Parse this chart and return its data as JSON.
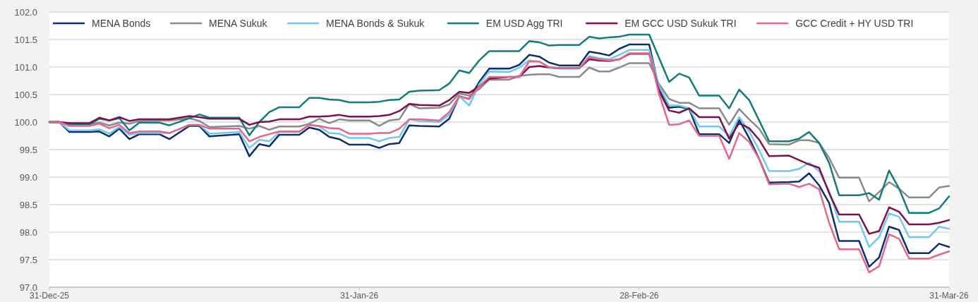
{
  "chart_data": {
    "type": "line",
    "x": [
      "2025-12-31",
      "2026-01-01",
      "2026-01-02",
      "2026-01-04",
      "2026-01-05",
      "2026-01-06",
      "2026-01-07",
      "2026-01-08",
      "2026-01-09",
      "2026-01-11",
      "2026-01-12",
      "2026-01-14",
      "2026-01-15",
      "2026-01-16",
      "2026-01-19",
      "2026-01-20",
      "2026-01-21",
      "2026-01-22",
      "2026-01-23",
      "2026-01-25",
      "2026-01-26",
      "2026-01-27",
      "2026-01-28",
      "2026-01-29",
      "2026-01-30",
      "2026-02-01",
      "2026-02-02",
      "2026-02-03",
      "2026-02-04",
      "2026-02-05",
      "2026-02-06",
      "2026-02-08",
      "2026-02-09",
      "2026-02-10",
      "2026-02-11",
      "2026-02-12",
      "2026-02-13",
      "2026-02-15",
      "2026-02-16",
      "2026-02-17",
      "2026-02-18",
      "2026-02-19",
      "2026-02-20",
      "2026-02-22",
      "2026-02-23",
      "2026-02-24",
      "2026-02-25",
      "2026-02-26",
      "2026-02-27",
      "2026-03-01",
      "2026-03-02",
      "2026-03-03",
      "2026-03-04",
      "2026-03-05",
      "2026-03-06",
      "2026-03-08",
      "2026-03-09",
      "2026-03-10",
      "2026-03-11",
      "2026-03-12",
      "2026-03-13",
      "2026-03-15",
      "2026-03-16",
      "2026-03-17",
      "2026-03-18",
      "2026-03-19",
      "2026-03-20",
      "2026-03-22",
      "2026-03-23",
      "2026-03-24",
      "2026-03-25",
      "2026-03-26",
      "2026-03-27",
      "2026-03-29",
      "2026-03-30",
      "2026-03-31"
    ],
    "series": [
      {
        "name": "MENA Bonds",
        "color": "#0b2f6b",
        "values": [
          100,
          100,
          99.82,
          99.82,
          99.83,
          99.74,
          99.88,
          99.69,
          99.78,
          99.78,
          99.69,
          99.93,
          99.93,
          99.74,
          99.78,
          99.38,
          99.6,
          99.56,
          99.77,
          99.77,
          99.9,
          99.86,
          99.73,
          99.69,
          99.59,
          99.59,
          99.53,
          99.6,
          99.62,
          99.94,
          99.93,
          99.92,
          100.06,
          100.47,
          100.42,
          100.73,
          100.97,
          100.97,
          101.04,
          101.22,
          101.19,
          101.08,
          101.03,
          101.03,
          101.28,
          101.25,
          101.21,
          101.33,
          101.41,
          101.41,
          100.6,
          100.26,
          100.28,
          100.24,
          99.78,
          99.78,
          99.62,
          100.04,
          99.71,
          99.33,
          98.9,
          98.91,
          98.92,
          99.07,
          98.85,
          98.53,
          97.84,
          97.84,
          97.37,
          97.54,
          98.1,
          98.04,
          97.62,
          97.62,
          97.79,
          97.73
        ]
      },
      {
        "name": "MENA Sukuk",
        "color": "#8a8a8a",
        "values": [
          100,
          100,
          99.96,
          99.96,
          99.99,
          99.94,
          99.99,
          99.97,
          100.02,
          100.03,
          100.03,
          100.07,
          100.02,
          99.91,
          99.93,
          99.88,
          99.93,
          99.86,
          99.92,
          99.92,
          99.97,
          100.06,
          99.98,
          100.05,
          100.03,
          100.03,
          99.93,
          100.03,
          100.05,
          100.33,
          100.25,
          100.26,
          100.32,
          100.52,
          100.48,
          100.6,
          100.77,
          100.77,
          100.84,
          100.86,
          100.87,
          100.87,
          100.82,
          100.82,
          100.99,
          100.92,
          100.92,
          100.99,
          101.07,
          101.07,
          100.69,
          100.42,
          100.35,
          100.35,
          100.25,
          100.25,
          99.95,
          100.24,
          100.05,
          99.88,
          99.6,
          99.59,
          99.67,
          99.67,
          99.62,
          99.35,
          98.99,
          98.99,
          98.56,
          98.73,
          98.91,
          98.79,
          98.63,
          98.63,
          98.81,
          98.84
        ]
      },
      {
        "name": "MENA Bonds & Sukuk",
        "color": "#72c7ec",
        "values": [
          100,
          100,
          99.85,
          99.85,
          99.87,
          99.79,
          99.91,
          99.77,
          99.8,
          99.8,
          99.8,
          99.95,
          99.95,
          99.79,
          99.82,
          99.53,
          99.68,
          99.65,
          99.82,
          99.82,
          99.95,
          99.92,
          99.8,
          99.79,
          99.71,
          99.71,
          99.65,
          99.71,
          99.73,
          100.05,
          100.02,
          100,
          100.13,
          100.47,
          100.3,
          100.69,
          100.92,
          100.91,
          100.99,
          101.12,
          101.1,
          101,
          100.97,
          100.97,
          101.2,
          101.16,
          101.14,
          101.22,
          101.31,
          101.31,
          100.65,
          100.3,
          100.3,
          100.25,
          99.92,
          99.92,
          99.75,
          100.09,
          99.83,
          99.49,
          99.11,
          99.11,
          99.15,
          99.26,
          99.11,
          98.75,
          98.19,
          98.19,
          97.73,
          97.91,
          98.34,
          98.28,
          97.91,
          97.91,
          98.1,
          98.06
        ]
      },
      {
        "name": "EM USD Agg TRI",
        "color": "#137b7c",
        "values": [
          100,
          100,
          99.96,
          99.96,
          100.06,
          100.03,
          100.07,
          99.85,
          99.99,
          99.99,
          99.94,
          100.07,
          100.14,
          100.08,
          100.08,
          99.76,
          100,
          100.18,
          100.27,
          100.27,
          100.44,
          100.44,
          100.41,
          100.4,
          100.36,
          100.36,
          100.37,
          100.4,
          100.41,
          100.55,
          100.57,
          100.58,
          100.7,
          100.94,
          100.89,
          101.12,
          101.29,
          101.29,
          101.29,
          101.47,
          101.45,
          101.39,
          101.4,
          101.4,
          101.55,
          101.52,
          101.54,
          101.55,
          101.59,
          101.59,
          101.16,
          100.73,
          100.88,
          100.81,
          100.48,
          100.48,
          100.25,
          100.59,
          100.4,
          100.03,
          99.65,
          99.65,
          99.7,
          99.82,
          99.62,
          99.26,
          98.67,
          98.67,
          98.71,
          98.59,
          99.12,
          98.79,
          98.35,
          98.35,
          98.43,
          98.65
        ]
      },
      {
        "name": "EM GCC USD Sukuk TRI",
        "color": "#7b1150",
        "values": [
          100,
          100,
          99.98,
          99.98,
          100.08,
          100.03,
          100.09,
          100.02,
          100.05,
          100.05,
          100.05,
          100.11,
          100.09,
          100.06,
          100.06,
          99.95,
          100,
          100.01,
          100.05,
          100.05,
          100.1,
          100.1,
          100.11,
          100.13,
          100.1,
          100.1,
          100.11,
          100.13,
          100.2,
          100.33,
          100.31,
          100.3,
          100.4,
          100.55,
          100.53,
          100.65,
          100.79,
          100.82,
          100.82,
          101,
          101.02,
          100.99,
          100.98,
          100.98,
          101.14,
          101.12,
          101.11,
          101.14,
          101.24,
          101.24,
          100.56,
          100.21,
          100.17,
          100.25,
          100.09,
          100.09,
          99.7,
          99.98,
          99.89,
          99.68,
          99.38,
          99.39,
          99.31,
          99.23,
          99.17,
          98.71,
          98.32,
          98.32,
          97.97,
          98.02,
          98.45,
          98.37,
          98.14,
          98.14,
          98.17,
          98.22
        ]
      },
      {
        "name": "GCC Credit + HY USD TRI",
        "color": "#e2678b",
        "values": [
          100,
          100,
          99.93,
          99.93,
          99.97,
          99.89,
          99.95,
          99.8,
          99.83,
          99.83,
          99.8,
          99.95,
          99.95,
          99.88,
          99.88,
          99.65,
          99.73,
          99.78,
          99.83,
          99.83,
          99.95,
          99.93,
          99.89,
          99.88,
          99.79,
          99.79,
          99.8,
          99.8,
          99.88,
          100.05,
          100.05,
          100.03,
          100.18,
          100.47,
          100.42,
          100.65,
          100.82,
          100.82,
          100.82,
          101.1,
          101.1,
          100.99,
          100.98,
          100.98,
          101.18,
          101.14,
          101.12,
          101.14,
          101.25,
          101.25,
          100.5,
          99.95,
          99.96,
          100.03,
          99.75,
          99.75,
          99.33,
          99.8,
          99.64,
          99.33,
          98.87,
          98.88,
          98.82,
          98.88,
          98.78,
          98.17,
          97.69,
          97.69,
          97.27,
          97.38,
          97.96,
          97.88,
          97.52,
          97.52,
          97.59,
          97.65
        ]
      }
    ],
    "xlim": [
      "2025-12-31",
      "2026-03-31"
    ],
    "xticks": [
      {
        "value": "2025-12-31",
        "label": "31-Dec-25"
      },
      {
        "value": "2026-01-31",
        "label": "31-Jan-26"
      },
      {
        "value": "2026-02-28",
        "label": "28-Feb-26"
      },
      {
        "value": "2026-03-31",
        "label": "31-Mar-26"
      }
    ],
    "ylim": [
      97,
      102
    ],
    "yticks": [
      {
        "value": 97,
        "label": "97.0"
      },
      {
        "value": 97.5,
        "label": "97.5"
      },
      {
        "value": 98,
        "label": "98.0"
      },
      {
        "value": 98.5,
        "label": "98.5"
      },
      {
        "value": 99,
        "label": "99.0"
      },
      {
        "value": 99.5,
        "label": "99.5"
      },
      {
        "value": 100,
        "label": "100.0"
      },
      {
        "value": 100.5,
        "label": "100.5"
      },
      {
        "value": 101,
        "label": "101.0"
      },
      {
        "value": 101.5,
        "label": "101.5"
      },
      {
        "value": 102,
        "label": "102.0"
      }
    ],
    "grid": "y",
    "legend": "top"
  }
}
